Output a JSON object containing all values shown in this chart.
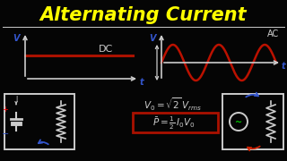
{
  "title": "Alternating Current",
  "title_color": "#FFFF00",
  "bg_color": "#050505",
  "dc_label": "DC",
  "ac_label": "AC",
  "formula1": "$V_0 = \\sqrt{2}\\,V_{rms}$",
  "formula2": "$\\bar{P} = \\frac{1}{2}\\,I_0V_0$",
  "v_label": "V",
  "t_label": "t",
  "line_color": "#CCCCCC",
  "dc_color": "#AA1100",
  "ac_color": "#BB1100",
  "blue_label": "#3355CC",
  "red_box": "#AA1100"
}
